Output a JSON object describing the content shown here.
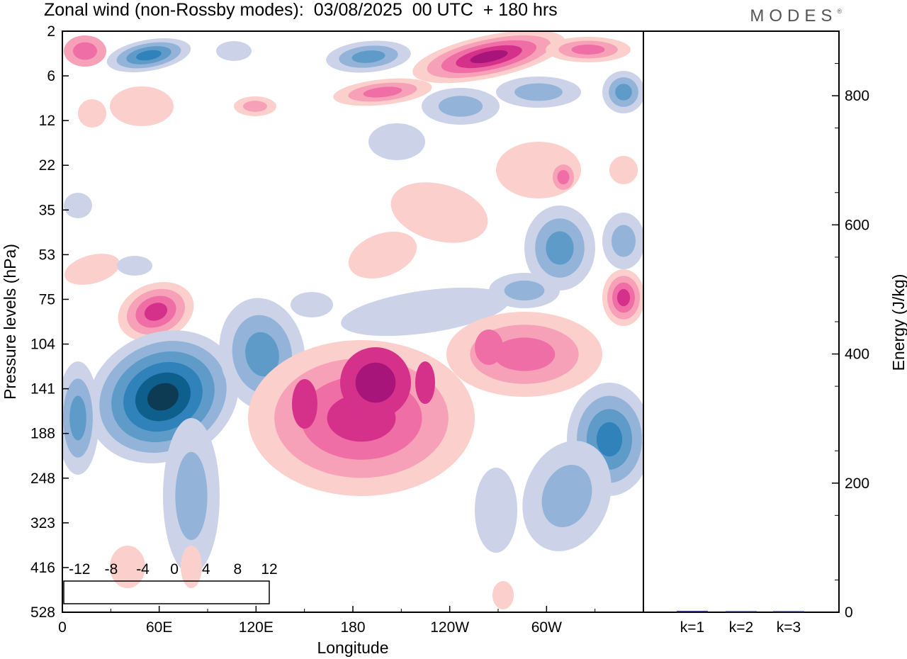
{
  "header": {
    "title": "Zonal wind (non-Rossby modes):  03/08/2025  00 UTC  + 180 hrs",
    "logo": "MODES",
    "logo_mark": "®"
  },
  "chart_data": [
    {
      "type": "heatmap",
      "title": "Zonal wind (non-Rossby modes):  03/08/2025  00 UTC  + 180 hrs",
      "xlabel": "Longitude",
      "ylabel": "Pressure levels (hPa)",
      "x_ticks": [
        "0",
        "60E",
        "120E",
        "180",
        "120W",
        "60W"
      ],
      "y_ticks": [
        "2",
        "6",
        "12",
        "22",
        "35",
        "53",
        "75",
        "104",
        "141",
        "188",
        "248",
        "323",
        "416",
        "528"
      ],
      "colorbar": {
        "labels": [
          "-12",
          "-8",
          "-4",
          "0",
          "4",
          "8",
          "12"
        ],
        "levels": [
          -14,
          -12,
          -10,
          -8,
          -6,
          -4,
          -2,
          2,
          4,
          6,
          8,
          10,
          12,
          14
        ],
        "colors": [
          "#0c3b53",
          "#0e5f8c",
          "#2f82ba",
          "#5f9bc9",
          "#93b4d8",
          "#ccd3e8",
          "#ffffff",
          "#fbcfcb",
          "#f7a1b9",
          "#ef6ea6",
          "#d5318b",
          "#a8157a",
          "#5c086c"
        ]
      },
      "features": [
        {
          "lon": 80,
          "level": 141,
          "value": -14
        },
        {
          "lon": 50,
          "level": 188,
          "value": -8
        },
        {
          "lon": 110,
          "level": 141,
          "value": -6
        },
        {
          "lon": 70,
          "level": 90,
          "value": 8
        },
        {
          "lon": 190,
          "level": 160,
          "value": 10
        },
        {
          "lon": 245,
          "level": 5,
          "value": 12
        },
        {
          "lon": 320,
          "level": 188,
          "value": -8
        },
        {
          "lon": 350,
          "level": 75,
          "value": 8
        }
      ]
    },
    {
      "type": "bar",
      "categories": [
        "k=1",
        "k=2",
        "k=3"
      ],
      "values": [
        2,
        1,
        0.5
      ],
      "ylabel": "Energy (J/kg)",
      "y_ticks": [
        "0",
        "200",
        "400",
        "600",
        "800"
      ],
      "ylim": [
        0,
        900
      ],
      "bar_color": "#1a1a7a"
    }
  ]
}
